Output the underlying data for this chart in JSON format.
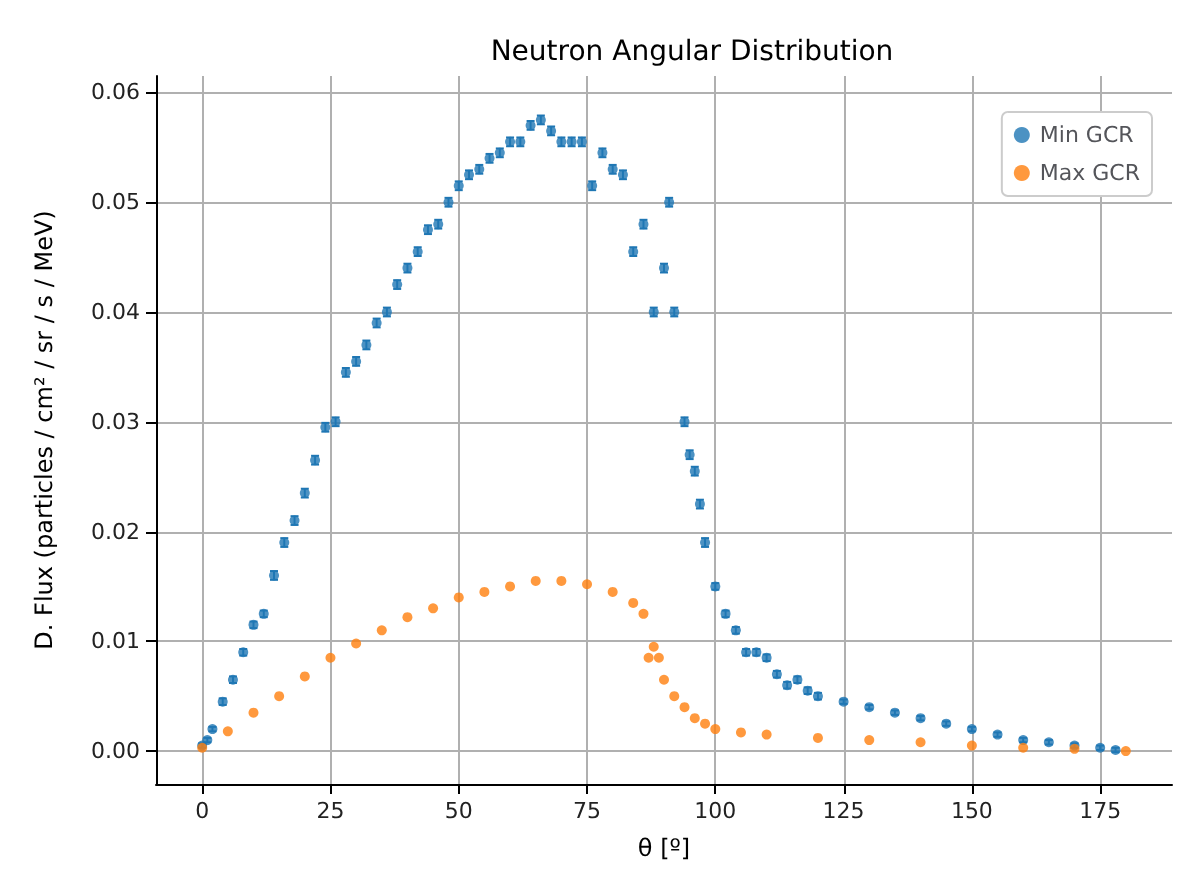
{
  "chart_data": {
    "type": "scatter",
    "title": "Neutron Angular Distribution",
    "xlabel": "θ [º]",
    "ylabel": "D. Flux (particles / cm² / sr / s / MeV)",
    "xlim": [
      -9,
      189
    ],
    "xticks": [
      0,
      25,
      50,
      75,
      100,
      125,
      150,
      175
    ],
    "ylim": [
      -0.003,
      0.0615
    ],
    "yticks": [
      {
        "value": 0,
        "label": "0.00"
      },
      {
        "value": 0.01,
        "label": "0.01"
      },
      {
        "value": 0.02,
        "label": "0.02"
      },
      {
        "value": 0.03,
        "label": "0.03"
      },
      {
        "value": 0.04,
        "label": "0.04"
      },
      {
        "value": 0.05,
        "label": "0.05"
      },
      {
        "value": 0.06,
        "label": "0.06"
      }
    ],
    "grid": true,
    "legend": "top right",
    "marker": "circle",
    "series": [
      {
        "name": "Min GCR",
        "color": "#1f77b4",
        "x": [
          0,
          1,
          2,
          4,
          6,
          8,
          10,
          12,
          14,
          16,
          18,
          20,
          22,
          24,
          26,
          28,
          30,
          32,
          34,
          36,
          38,
          40,
          42,
          44,
          46,
          48,
          50,
          52,
          54,
          56,
          58,
          60,
          62,
          64,
          66,
          68,
          70,
          72,
          74,
          76,
          78,
          80,
          82,
          84,
          86,
          88,
          90,
          91,
          92,
          94,
          95,
          96,
          97,
          98,
          100,
          102,
          104,
          106,
          108,
          110,
          112,
          114,
          116,
          118,
          120,
          125,
          130,
          135,
          140,
          145,
          150,
          155,
          160,
          165,
          170,
          175,
          178
        ],
        "values": [
          0.0005,
          0.001,
          0.002,
          0.0045,
          0.0065,
          0.009,
          0.0115,
          0.0125,
          0.016,
          0.019,
          0.021,
          0.0235,
          0.0265,
          0.0295,
          0.03,
          0.0345,
          0.0355,
          0.037,
          0.039,
          0.04,
          0.0425,
          0.044,
          0.0455,
          0.0475,
          0.048,
          0.05,
          0.0515,
          0.0525,
          0.053,
          0.054,
          0.0545,
          0.0555,
          0.0555,
          0.057,
          0.0575,
          0.0565,
          0.0555,
          0.0555,
          0.0555,
          0.0515,
          0.0545,
          0.053,
          0.0525,
          0.0455,
          0.048,
          0.04,
          0.044,
          0.05,
          0.04,
          0.03,
          0.027,
          0.0255,
          0.0225,
          0.019,
          0.015,
          0.0125,
          0.011,
          0.009,
          0.009,
          0.0085,
          0.007,
          0.006,
          0.0065,
          0.0055,
          0.005,
          0.0045,
          0.004,
          0.0035,
          0.003,
          0.0025,
          0.002,
          0.0015,
          0.001,
          0.0008,
          0.0005,
          0.0003,
          0.0001
        ],
        "errors": [
          0.0002,
          0.0002,
          0.0002,
          0.0003,
          0.0003,
          0.0003,
          0.0003,
          0.0003,
          0.0004,
          0.0004,
          0.0004,
          0.0004,
          0.0004,
          0.0004,
          0.0004,
          0.0004,
          0.0004,
          0.0004,
          0.0004,
          0.0004,
          0.0004,
          0.0004,
          0.0004,
          0.0004,
          0.0004,
          0.0004,
          0.0004,
          0.0004,
          0.0004,
          0.0004,
          0.0004,
          0.0004,
          0.0004,
          0.0004,
          0.0004,
          0.0004,
          0.0004,
          0.0004,
          0.0004,
          0.0004,
          0.0004,
          0.0004,
          0.0004,
          0.0004,
          0.0004,
          0.0004,
          0.0004,
          0.0004,
          0.0004,
          0.0004,
          0.0004,
          0.0004,
          0.0004,
          0.0004,
          0.0003,
          0.0003,
          0.0003,
          0.0003,
          0.0003,
          0.0003,
          0.0003,
          0.0003,
          0.0003,
          0.0003,
          0.0003,
          0.0002,
          0.0002,
          0.0002,
          0.0002,
          0.0002,
          0.0002,
          0.0002,
          0.0002,
          0.0002,
          0.0002,
          0.0002,
          0.0002
        ]
      },
      {
        "name": "Max GCR",
        "color": "#ff7f0e",
        "x": [
          0,
          5,
          10,
          15,
          20,
          25,
          30,
          35,
          40,
          45,
          50,
          55,
          60,
          65,
          70,
          75,
          80,
          84,
          86,
          87,
          88,
          89,
          90,
          92,
          94,
          96,
          98,
          100,
          105,
          110,
          120,
          130,
          140,
          150,
          160,
          170,
          180
        ],
        "values": [
          0.0003,
          0.0018,
          0.0035,
          0.005,
          0.0068,
          0.0085,
          0.0098,
          0.011,
          0.0122,
          0.013,
          0.014,
          0.0145,
          0.015,
          0.0155,
          0.0155,
          0.0152,
          0.0145,
          0.0135,
          0.0125,
          0.0085,
          0.0095,
          0.0085,
          0.0065,
          0.005,
          0.004,
          0.003,
          0.0025,
          0.002,
          0.0017,
          0.0015,
          0.0012,
          0.001,
          0.0008,
          0.0005,
          0.0003,
          0.0002,
          0
        ]
      }
    ]
  }
}
